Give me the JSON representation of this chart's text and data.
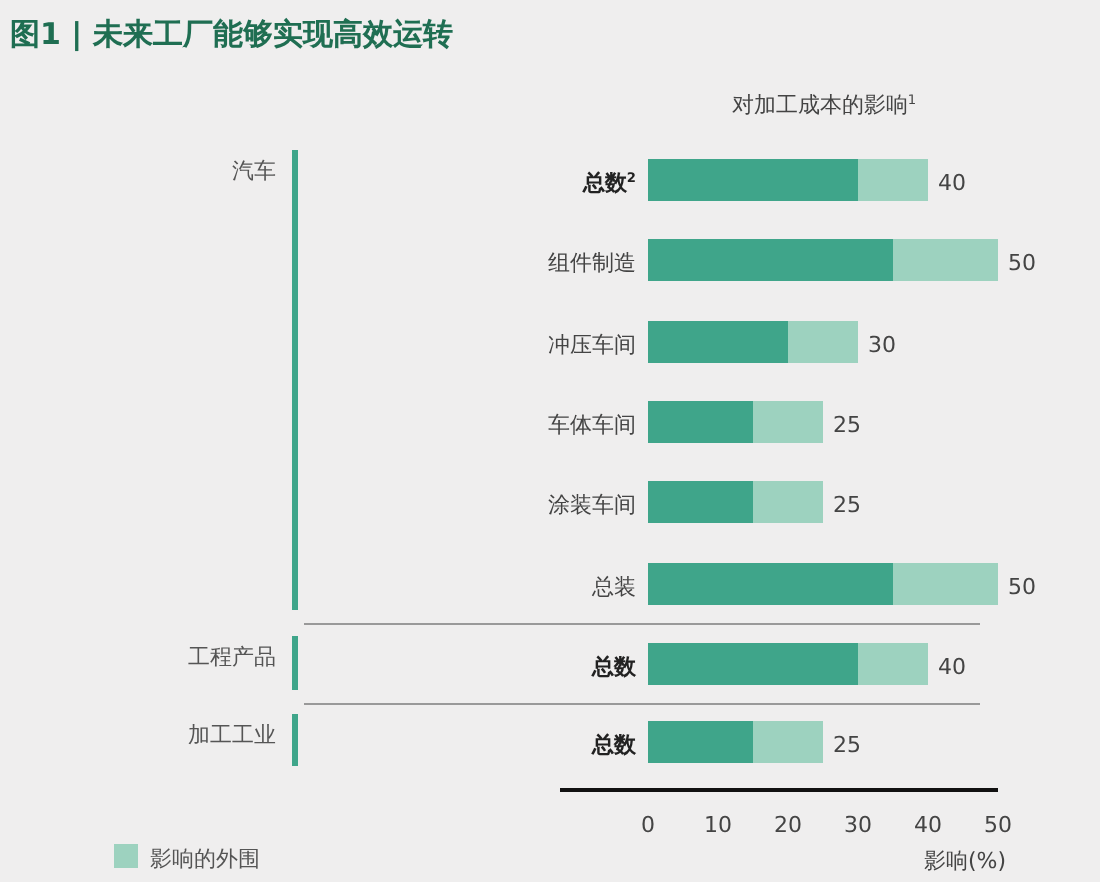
{
  "chart_data": {
    "type": "bar",
    "orientation": "horizontal",
    "stacked": true,
    "title": "图1 | 未来工厂能够实现高效运转",
    "subtitle": "对加工成本的影响$^{1}$",
    "xlabel": "影响(%)",
    "categories": [
      "总数$^{2}$",
      "组件制造",
      "冲压车间",
      "车体车间",
      "涂装车间",
      "总装",
      "总数",
      "总数"
    ],
    "series": [
      {
        "color": "#3fa58a",
        "values": [
          30,
          35,
          20,
          15,
          15,
          35,
          30,
          15
        ]
      },
      {
        "name": "影响的外围",
        "color": "#9dd2bf",
        "values": [
          10,
          15,
          10,
          10,
          10,
          15,
          10,
          10
        ]
      }
    ],
    "totals": [
      "40",
      "50",
      "30",
      "25",
      "25",
      "50",
      "40",
      "25"
    ],
    "xlim": [
      0,
      50
    ],
    "xticks": [
      0,
      10,
      20,
      30,
      40,
      50
    ],
    "grid": false,
    "legend": "bottom left",
    "annotations": [
      "汽车",
      "工程产品",
      "加工工业"
    ]
  }
}
